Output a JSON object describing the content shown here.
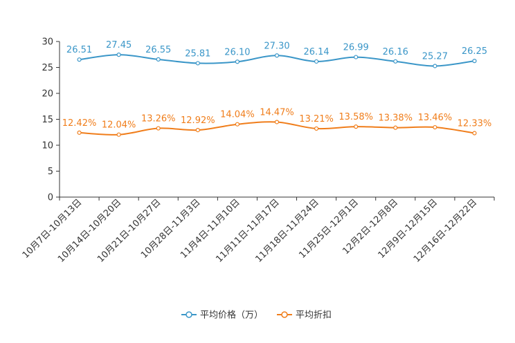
{
  "chart_data": {
    "type": "line",
    "title": "",
    "xlabel": "",
    "ylabel": "",
    "ylim": [
      0,
      30
    ],
    "yticks": [
      0,
      5,
      10,
      15,
      20,
      25,
      30
    ],
    "grid": false,
    "legend_position": "bottom-center",
    "categories": [
      "10月7日-10月13日",
      "10月14日-10月20日",
      "10月21日-10月27日",
      "10月28日-11月3日",
      "11月4日-11月10日",
      "11月11日-11月17日",
      "11月18日-11月24日",
      "11月25日-12月1日",
      "12月2日-12月8日",
      "12月9日-12月15日",
      "12月16日-12月22日"
    ],
    "series": [
      {
        "name": "平均价格（万）",
        "color": "#3a96c8",
        "values": [
          26.51,
          27.45,
          26.55,
          25.81,
          26.1,
          27.3,
          26.14,
          26.99,
          26.16,
          25.27,
          26.25
        ],
        "labels": [
          "26.51",
          "27.45",
          "26.55",
          "25.81",
          "26.10",
          "27.30",
          "26.14",
          "26.99",
          "26.16",
          "25.27",
          "26.25"
        ]
      },
      {
        "name": "平均折扣",
        "color": "#f07d1a",
        "values": [
          12.42,
          12.04,
          13.26,
          12.92,
          14.04,
          14.47,
          13.21,
          13.58,
          13.38,
          13.46,
          12.33
        ],
        "labels": [
          "12.42%",
          "12.04%",
          "13.26%",
          "12.92%",
          "14.04%",
          "14.47%",
          "13.21%",
          "13.58%",
          "13.38%",
          "13.46%",
          "12.33%"
        ]
      }
    ]
  }
}
